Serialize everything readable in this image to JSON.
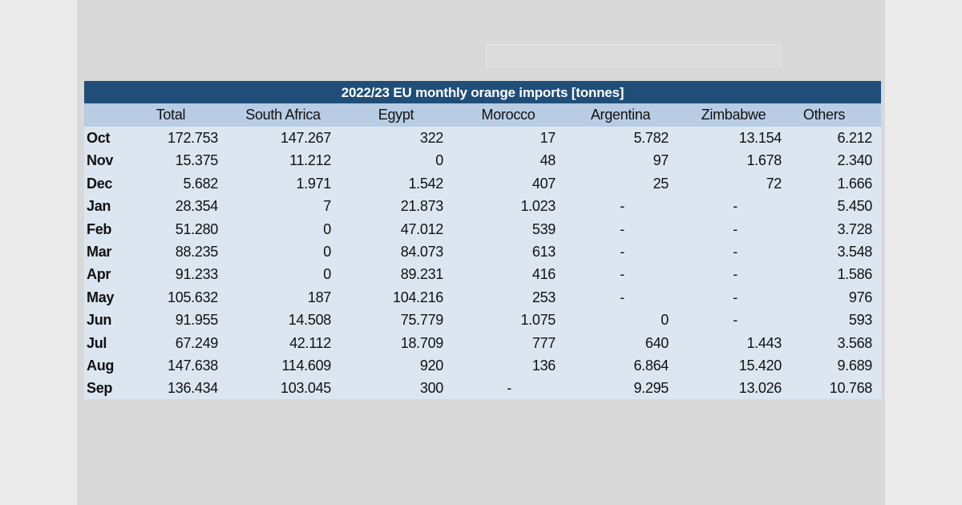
{
  "table": {
    "title": "2022/23 EU monthly orange imports  [tonnes]",
    "columns": [
      "Total",
      "South Africa",
      "Egypt",
      "Morocco",
      "Argentina",
      "Zimbabwe",
      "Others"
    ],
    "rows": [
      {
        "month": "Oct",
        "values": [
          "172.753",
          "147.267",
          "322",
          "17",
          "5.782",
          "13.154",
          "6.212"
        ]
      },
      {
        "month": "Nov",
        "values": [
          "15.375",
          "11.212",
          "0",
          "48",
          "97",
          "1.678",
          "2.340"
        ]
      },
      {
        "month": "Dec",
        "values": [
          "5.682",
          "1.971",
          "1.542",
          "407",
          "25",
          "72",
          "1.666"
        ]
      },
      {
        "month": "Jan",
        "values": [
          "28.354",
          "7",
          "21.873",
          "1.023",
          "-",
          "-",
          "5.450"
        ]
      },
      {
        "month": "Feb",
        "values": [
          "51.280",
          "0",
          "47.012",
          "539",
          "-",
          "-",
          "3.728"
        ]
      },
      {
        "month": "Mar",
        "values": [
          "88.235",
          "0",
          "84.073",
          "613",
          "-",
          "-",
          "3.548"
        ]
      },
      {
        "month": "Apr",
        "values": [
          "91.233",
          "0",
          "89.231",
          "416",
          "-",
          "-",
          "1.586"
        ]
      },
      {
        "month": "May",
        "values": [
          "105.632",
          "187",
          "104.216",
          "253",
          "-",
          "-",
          "976"
        ]
      },
      {
        "month": "Jun",
        "values": [
          "91.955",
          "14.508",
          "75.779",
          "1.075",
          "0",
          "-",
          "593"
        ]
      },
      {
        "month": "Jul",
        "values": [
          "67.249",
          "42.112",
          "18.709",
          "777",
          "640",
          "1.443",
          "3.568"
        ]
      },
      {
        "month": "Aug",
        "values": [
          "147.638",
          "114.609",
          "920",
          "136",
          "6.864",
          "15.420",
          "9.689"
        ]
      },
      {
        "month": "Sep",
        "values": [
          "136.434",
          "103.045",
          "300",
          "-",
          "9.295",
          "13.026",
          "10.768"
        ]
      }
    ]
  },
  "colors": {
    "title_bar": "#1f4e79",
    "header": "#b8cce4",
    "body": "#dce6f1"
  }
}
